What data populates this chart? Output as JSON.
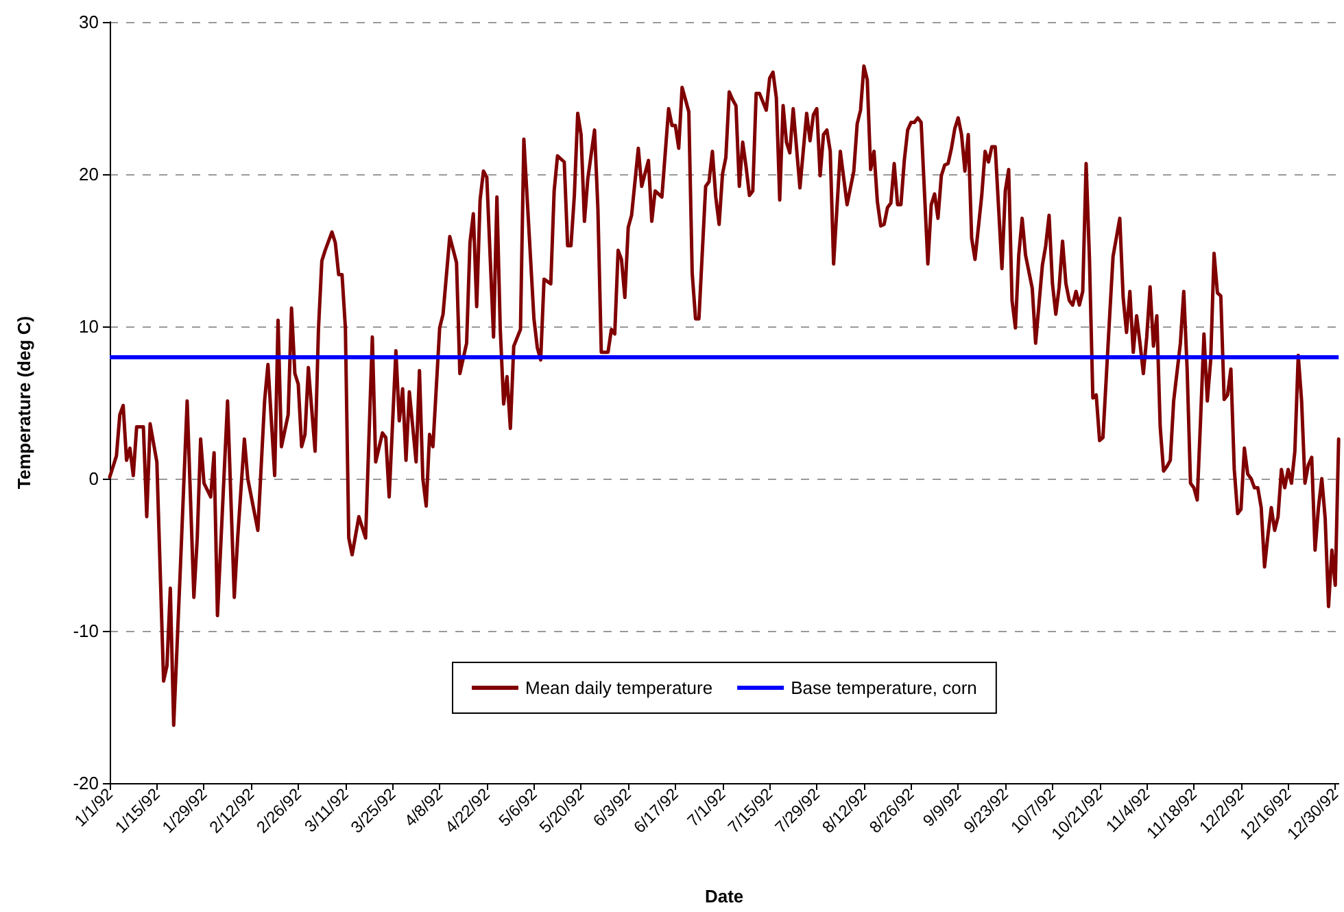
{
  "chart_data": {
    "type": "line",
    "xlabel": "Date",
    "ylabel": "Temperature (deg C)",
    "x": [
      "1992-01-01",
      "1992-01-03",
      "1992-01-04",
      "1992-01-05",
      "1992-01-06",
      "1992-01-07",
      "1992-01-08",
      "1992-01-09",
      "1992-01-11",
      "1992-01-12",
      "1992-01-13",
      "1992-01-15",
      "1992-01-17",
      "1992-01-18",
      "1992-01-19",
      "1992-01-20",
      "1992-01-22",
      "1992-01-24",
      "1992-01-26",
      "1992-01-27",
      "1992-01-28",
      "1992-01-29",
      "1992-01-31",
      "1992-02-01",
      "1992-02-02",
      "1992-02-05",
      "1992-02-07",
      "1992-02-08",
      "1992-02-10",
      "1992-02-11",
      "1992-02-14",
      "1992-02-16",
      "1992-02-17",
      "1992-02-19",
      "1992-02-20",
      "1992-02-21",
      "1992-02-23",
      "1992-02-24",
      "1992-02-25",
      "1992-02-26",
      "1992-02-27",
      "1992-02-28",
      "1992-02-29",
      "1992-03-02",
      "1992-03-03",
      "1992-03-04",
      "1992-03-05",
      "1992-03-07",
      "1992-03-08",
      "1992-03-09",
      "1992-03-10",
      "1992-03-11",
      "1992-03-12",
      "1992-03-13",
      "1992-03-15",
      "1992-03-17",
      "1992-03-19",
      "1992-03-20",
      "1992-03-22",
      "1992-03-23",
      "1992-03-24",
      "1992-03-26",
      "1992-03-27",
      "1992-03-28",
      "1992-03-29",
      "1992-03-30",
      "1992-04-01",
      "1992-04-02",
      "1992-04-03",
      "1992-04-04",
      "1992-04-05",
      "1992-04-06",
      "1992-04-08",
      "1992-04-09",
      "1992-04-11",
      "1992-04-13",
      "1992-04-14",
      "1992-04-16",
      "1992-04-17",
      "1992-04-18",
      "1992-04-19",
      "1992-04-20",
      "1992-04-21",
      "1992-04-22",
      "1992-04-24",
      "1992-04-25",
      "1992-04-26",
      "1992-04-27",
      "1992-04-28",
      "1992-04-29",
      "1992-04-30",
      "1992-05-02",
      "1992-05-03",
      "1992-05-06",
      "1992-05-07",
      "1992-05-08",
      "1992-05-09",
      "1992-05-11",
      "1992-05-12",
      "1992-05-13",
      "1992-05-15",
      "1992-05-16",
      "1992-05-17",
      "1992-05-18",
      "1992-05-19",
      "1992-05-20",
      "1992-05-21",
      "1992-05-22",
      "1992-05-24",
      "1992-05-25",
      "1992-05-26",
      "1992-05-28",
      "1992-05-29",
      "1992-05-30",
      "1992-05-31",
      "1992-06-01",
      "1992-06-02",
      "1992-06-03",
      "1992-06-04",
      "1992-06-06",
      "1992-06-07",
      "1992-06-09",
      "1992-06-10",
      "1992-06-11",
      "1992-06-13",
      "1992-06-15",
      "1992-06-16",
      "1992-06-17",
      "1992-06-18",
      "1992-06-19",
      "1992-06-21",
      "1992-06-22",
      "1992-06-23",
      "1992-06-24",
      "1992-06-26",
      "1992-06-27",
      "1992-06-28",
      "1992-06-29",
      "1992-06-30",
      "1992-07-01",
      "1992-07-02",
      "1992-07-03",
      "1992-07-04",
      "1992-07-05",
      "1992-07-06",
      "1992-07-07",
      "1992-07-08",
      "1992-07-09",
      "1992-07-10",
      "1992-07-11",
      "1992-07-12",
      "1992-07-14",
      "1992-07-15",
      "1992-07-16",
      "1992-07-17",
      "1992-07-18",
      "1992-07-19",
      "1992-07-20",
      "1992-07-21",
      "1992-07-22",
      "1992-07-24",
      "1992-07-26",
      "1992-07-27",
      "1992-07-28",
      "1992-07-29",
      "1992-07-30",
      "1992-07-31",
      "1992-08-01",
      "1992-08-02",
      "1992-08-03",
      "1992-08-05",
      "1992-08-07",
      "1992-08-09",
      "1992-08-10",
      "1992-08-11",
      "1992-08-12",
      "1992-08-13",
      "1992-08-14",
      "1992-08-15",
      "1992-08-16",
      "1992-08-17",
      "1992-08-18",
      "1992-08-19",
      "1992-08-20",
      "1992-08-21",
      "1992-08-22",
      "1992-08-23",
      "1992-08-24",
      "1992-08-25",
      "1992-08-26",
      "1992-08-27",
      "1992-08-28",
      "1992-08-29",
      "1992-08-31",
      "1992-09-01",
      "1992-09-02",
      "1992-09-03",
      "1992-09-04",
      "1992-09-05",
      "1992-09-06",
      "1992-09-07",
      "1992-09-08",
      "1992-09-09",
      "1992-09-10",
      "1992-09-11",
      "1992-09-12",
      "1992-09-13",
      "1992-09-14",
      "1992-09-16",
      "1992-09-17",
      "1992-09-18",
      "1992-09-19",
      "1992-09-20",
      "1992-09-22",
      "1992-09-23",
      "1992-09-24",
      "1992-09-25",
      "1992-09-26",
      "1992-09-27",
      "1992-09-28",
      "1992-09-29",
      "1992-10-01",
      "1992-10-02",
      "1992-10-04",
      "1992-10-05",
      "1992-10-06",
      "1992-10-07",
      "1992-10-08",
      "1992-10-09",
      "1992-10-10",
      "1992-10-11",
      "1992-10-12",
      "1992-10-13",
      "1992-10-14",
      "1992-10-15",
      "1992-10-16",
      "1992-10-17",
      "1992-10-18",
      "1992-10-19",
      "1992-10-20",
      "1992-10-21",
      "1992-10-22",
      "1992-10-23",
      "1992-10-24",
      "1992-10-25",
      "1992-10-27",
      "1992-10-28",
      "1992-10-29",
      "1992-10-30",
      "1992-10-31",
      "1992-11-01",
      "1992-11-02",
      "1992-11-03",
      "1992-11-04",
      "1992-11-05",
      "1992-11-06",
      "1992-11-07",
      "1992-11-08",
      "1992-11-09",
      "1992-11-10",
      "1992-11-11",
      "1992-11-12",
      "1992-11-14",
      "1992-11-15",
      "1992-11-16",
      "1992-11-17",
      "1992-11-18",
      "1992-11-19",
      "1992-11-20",
      "1992-11-21",
      "1992-11-22",
      "1992-11-23",
      "1992-11-24",
      "1992-11-25",
      "1992-11-26",
      "1992-11-27",
      "1992-11-28",
      "1992-11-29",
      "1992-11-30",
      "1992-12-01",
      "1992-12-02",
      "1992-12-03",
      "1992-12-04",
      "1992-12-05",
      "1992-12-06",
      "1992-12-07",
      "1992-12-08",
      "1992-12-09",
      "1992-12-10",
      "1992-12-11",
      "1992-12-12",
      "1992-12-13",
      "1992-12-14",
      "1992-12-15",
      "1992-12-16",
      "1992-12-17",
      "1992-12-18",
      "1992-12-19",
      "1992-12-20",
      "1992-12-21",
      "1992-12-22",
      "1992-12-23",
      "1992-12-24",
      "1992-12-25",
      "1992-12-26",
      "1992-12-27",
      "1992-12-28",
      "1992-12-29",
      "1992-12-30",
      "1992-12-31"
    ],
    "series": [
      {
        "name": "Mean daily temperature",
        "color": "#800000",
        "values": [
          0.1,
          1.5,
          4.2,
          4.8,
          1.2,
          2.0,
          0.2,
          3.4,
          3.4,
          -2.5,
          3.6,
          1.1,
          -13.3,
          -12.3,
          -7.2,
          -16.2,
          -5.8,
          5.1,
          -7.8,
          -3.9,
          2.6,
          -0.3,
          -1.2,
          1.7,
          -9.0,
          5.1,
          -7.8,
          -3.9,
          2.6,
          0,
          -3.4,
          5.1,
          7.5,
          0.2,
          10.4,
          2.1,
          4.2,
          11.2,
          6.9,
          6.2,
          2.1,
          2.9,
          7.3,
          1.8,
          9.8,
          14.3,
          15.0,
          16.2,
          15.5,
          13.4,
          13.4,
          9.9,
          -3.9,
          -5.0,
          -2.5,
          -3.9,
          9.3,
          1.1,
          3.0,
          2.7,
          -1.2,
          8.4,
          3.8,
          5.9,
          1.2,
          5.7,
          1.1,
          7.1,
          0,
          -1.8,
          2.9,
          2.1,
          9.9,
          10.8,
          15.9,
          14.2,
          6.9,
          8.9,
          15.5,
          17.4,
          11.3,
          18.3,
          20.2,
          19.8,
          9.3,
          18.5,
          9.8,
          4.9,
          6.7,
          3.3,
          8.7,
          9.8,
          22.3,
          10.5,
          8.6,
          7.8,
          13.1,
          12.8,
          18.9,
          21.2,
          20.8,
          15.3,
          15.3,
          18.6,
          24.0,
          22.6,
          16.9,
          19.7,
          22.9,
          17.7,
          8.3,
          8.3,
          9.8,
          9.5,
          15.0,
          14.4,
          11.9,
          16.5,
          17.3,
          21.7,
          19.2,
          20.9,
          16.9,
          18.9,
          18.5,
          24.3,
          23.2,
          23.2,
          21.7,
          25.7,
          24.1,
          13.5,
          10.5,
          10.5,
          19.2,
          19.5,
          21.5,
          18.5,
          16.7,
          20.0,
          21.1,
          25.4,
          24.9,
          24.5,
          19.2,
          22.1,
          20.5,
          18.6,
          18.9,
          25.3,
          25.3,
          24.2,
          26.3,
          26.7,
          25.0,
          18.3,
          24.5,
          22.1,
          21.4,
          24.3,
          19.1,
          24.0,
          22.2,
          23.9,
          24.3,
          19.9,
          22.6,
          22.9,
          21.5,
          14.1,
          21.5,
          18.0,
          20.2,
          23.3,
          24.2,
          27.1,
          26.2,
          20.3,
          21.5,
          18.2,
          16.6,
          16.7,
          17.8,
          18.1,
          20.7,
          18.0,
          18.0,
          20.9,
          22.9,
          23.4,
          23.4,
          23.7,
          23.4,
          14.1,
          18.0,
          18.7,
          17.1,
          19.9,
          20.6,
          20.7,
          21.7,
          23.0,
          23.7,
          22.6,
          20.2,
          22.6,
          15.8,
          14.4,
          18.6,
          21.5,
          20.8,
          21.8,
          21.8,
          13.8,
          18.9,
          20.3,
          11.7,
          9.9,
          14.7,
          17.1,
          14.7,
          12.5,
          8.9,
          14.0,
          15.3,
          17.3,
          12.8,
          10.8,
          12.6,
          15.6,
          12.8,
          11.7,
          11.4,
          12.3,
          11.4,
          12.3,
          20.7,
          14.4,
          5.3,
          5.5,
          2.5,
          2.7,
          6.7,
          10.7,
          14.6,
          17.1,
          11.9,
          9.6,
          12.3,
          8.3,
          10.7,
          8.9,
          6.9,
          9.3,
          12.6,
          8.7,
          10.7,
          3.4,
          0.5,
          0.8,
          1.2,
          5.1,
          8.9,
          12.3,
          7.2,
          -0.3,
          -0.6,
          -1.4,
          3.9,
          9.5,
          5.1,
          7.8,
          14.8,
          12.2,
          12.0,
          5.2,
          5.5,
          7.2,
          0.6,
          -2.3,
          -2.0,
          2.0,
          0.3,
          0,
          -0.6,
          -0.6,
          -1.9,
          -5.8,
          -3.7,
          -1.9,
          -3.4,
          -2.5,
          0.6,
          -0.6,
          0.6,
          -0.3,
          1.8,
          8.1,
          5.1,
          -0.3,
          0.9,
          1.4,
          -4.7,
          -1.9,
          0,
          -2.6,
          -8.4,
          -4.7,
          -7.0,
          2.6
        ]
      }
    ],
    "ref_lines": [
      {
        "axis": "y",
        "value": 8,
        "label": "Base temperature, corn",
        "color": "#0000ff",
        "line_style": "solid"
      }
    ],
    "xlim": [
      "1992-01-01",
      "1992-12-31"
    ],
    "xticks": [
      {
        "value": "1992-01-01",
        "label": "1/1/92"
      },
      {
        "value": "1992-01-15",
        "label": "1/15/92"
      },
      {
        "value": "1992-01-29",
        "label": "1/29/92"
      },
      {
        "value": "1992-02-12",
        "label": "2/12/92"
      },
      {
        "value": "1992-02-26",
        "label": "2/26/92"
      },
      {
        "value": "1992-03-11",
        "label": "3/11/92"
      },
      {
        "value": "1992-03-25",
        "label": "3/25/92"
      },
      {
        "value": "1992-04-08",
        "label": "4/8/92"
      },
      {
        "value": "1992-04-22",
        "label": "4/22/92"
      },
      {
        "value": "1992-05-06",
        "label": "5/6/92"
      },
      {
        "value": "1992-05-20",
        "label": "5/20/92"
      },
      {
        "value": "1992-06-03",
        "label": "6/3/92"
      },
      {
        "value": "1992-06-17",
        "label": "6/17/92"
      },
      {
        "value": "1992-07-01",
        "label": "7/1/92"
      },
      {
        "value": "1992-07-15",
        "label": "7/15/92"
      },
      {
        "value": "1992-07-29",
        "label": "7/29/92"
      },
      {
        "value": "1992-08-12",
        "label": "8/12/92"
      },
      {
        "value": "1992-08-26",
        "label": "8/26/92"
      },
      {
        "value": "1992-09-09",
        "label": "9/9/92"
      },
      {
        "value": "1992-09-23",
        "label": "9/23/92"
      },
      {
        "value": "1992-10-07",
        "label": "10/7/92"
      },
      {
        "value": "1992-10-21",
        "label": "10/21/92"
      },
      {
        "value": "1992-11-04",
        "label": "11/4/92"
      },
      {
        "value": "1992-11-18",
        "label": "11/18/92"
      },
      {
        "value": "1992-12-02",
        "label": "12/2/92"
      },
      {
        "value": "1992-12-16",
        "label": "12/16/92"
      },
      {
        "value": "1992-12-30",
        "label": "12/30/92"
      }
    ],
    "ylim": [
      -20,
      30
    ],
    "yticks": [
      -20,
      -10,
      0,
      10,
      20,
      30
    ],
    "grid": "y",
    "legend": "bottom",
    "marker": "none",
    "line_style": "solid"
  }
}
